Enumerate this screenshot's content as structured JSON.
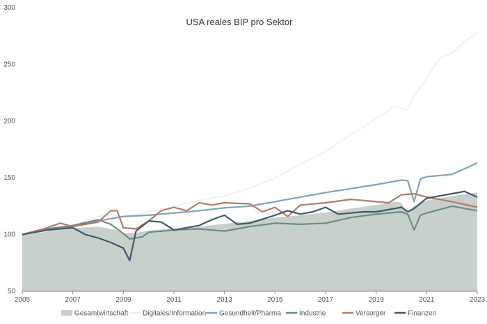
{
  "chart_data": {
    "type": "line",
    "title": "USA reales BIP pro Sektor",
    "xlabel": "",
    "ylabel": "",
    "xlim": [
      2005,
      2023
    ],
    "ylim": [
      50,
      300
    ],
    "x_ticks": [
      "2005",
      "2007",
      "2009",
      "2011",
      "2013",
      "2015",
      "2017",
      "2019",
      "2021",
      "2023"
    ],
    "y_ticks": [
      "50",
      "100",
      "150",
      "200",
      "250",
      "300"
    ],
    "grid": false,
    "legend_position": "bottom",
    "series": [
      {
        "name": "Gesamtwirtschaft",
        "style": "area",
        "color": "#c8d0cc",
        "points": [
          [
            2005,
            100
          ],
          [
            2006,
            103
          ],
          [
            2007,
            105.5
          ],
          [
            2008,
            107
          ],
          [
            2008.75,
            104
          ],
          [
            2009,
            101
          ],
          [
            2009.5,
            101.5
          ],
          [
            2010,
            103.5
          ],
          [
            2011,
            105
          ],
          [
            2012,
            107
          ],
          [
            2013,
            109.5
          ],
          [
            2014,
            112
          ],
          [
            2015,
            115
          ],
          [
            2016,
            117
          ],
          [
            2017,
            119.5
          ],
          [
            2018,
            123
          ],
          [
            2019,
            126
          ],
          [
            2019.75,
            129
          ],
          [
            2020,
            128
          ],
          [
            2020.25,
            118.5
          ],
          [
            2020.5,
            125
          ],
          [
            2021,
            130
          ],
          [
            2022,
            134
          ],
          [
            2023,
            137
          ]
        ]
      },
      {
        "name": "Digitales/Information",
        "color": "#eeeeee",
        "points": [
          [
            2005,
            100
          ],
          [
            2006,
            103
          ],
          [
            2007,
            108
          ],
          [
            2008,
            116
          ],
          [
            2008.5,
            118
          ],
          [
            2009,
            116
          ],
          [
            2009.5,
            117
          ],
          [
            2010,
            120
          ],
          [
            2011,
            125
          ],
          [
            2012,
            130
          ],
          [
            2013,
            134
          ],
          [
            2014,
            141
          ],
          [
            2015,
            150
          ],
          [
            2016,
            162
          ],
          [
            2017,
            173
          ],
          [
            2018,
            188
          ],
          [
            2019,
            202
          ],
          [
            2019.75,
            213
          ],
          [
            2020,
            211
          ],
          [
            2020.25,
            210
          ],
          [
            2020.5,
            222
          ],
          [
            2021,
            238
          ],
          [
            2021.5,
            255
          ],
          [
            2022,
            260
          ],
          [
            2022.5,
            270
          ],
          [
            2023,
            278
          ]
        ]
      },
      {
        "name": "Gesundheit/Pharma",
        "color": "#7fa3b6",
        "points": [
          [
            2005,
            100
          ],
          [
            2006,
            104
          ],
          [
            2007,
            107
          ],
          [
            2008,
            112
          ],
          [
            2009,
            116
          ],
          [
            2010,
            117
          ],
          [
            2011,
            119
          ],
          [
            2012,
            121
          ],
          [
            2013,
            123.5
          ],
          [
            2014,
            125
          ],
          [
            2015,
            129
          ],
          [
            2016,
            133
          ],
          [
            2017,
            137
          ],
          [
            2018,
            140.5
          ],
          [
            2019,
            144
          ],
          [
            2020,
            148
          ],
          [
            2020.25,
            147.5
          ],
          [
            2020.5,
            129
          ],
          [
            2020.75,
            149
          ],
          [
            2021,
            151
          ],
          [
            2022,
            153
          ],
          [
            2023,
            163
          ]
        ]
      },
      {
        "name": "Industrie",
        "color": "#6d8c80",
        "points": [
          [
            2005,
            100
          ],
          [
            2006,
            105
          ],
          [
            2007,
            108
          ],
          [
            2008,
            113
          ],
          [
            2008.5,
            109
          ],
          [
            2009,
            101
          ],
          [
            2009.25,
            96
          ],
          [
            2009.75,
            98
          ],
          [
            2010,
            102
          ],
          [
            2011,
            104
          ],
          [
            2012,
            105
          ],
          [
            2013,
            103
          ],
          [
            2014,
            107
          ],
          [
            2015,
            110
          ],
          [
            2016,
            109
          ],
          [
            2017,
            110
          ],
          [
            2018,
            115
          ],
          [
            2019,
            118
          ],
          [
            2020,
            120
          ],
          [
            2020.25,
            118
          ],
          [
            2020.5,
            104
          ],
          [
            2020.75,
            117
          ],
          [
            2021,
            119
          ],
          [
            2022,
            125
          ],
          [
            2023,
            121
          ]
        ]
      },
      {
        "name": "Versorger",
        "color": "#b57a6b",
        "points": [
          [
            2005,
            100
          ],
          [
            2006,
            106
          ],
          [
            2006.5,
            110
          ],
          [
            2007,
            107
          ],
          [
            2008,
            111
          ],
          [
            2008.5,
            121
          ],
          [
            2008.75,
            121
          ],
          [
            2009,
            106
          ],
          [
            2009.5,
            105
          ],
          [
            2010,
            112
          ],
          [
            2010.5,
            121
          ],
          [
            2011,
            124
          ],
          [
            2011.5,
            121
          ],
          [
            2012,
            128
          ],
          [
            2012.5,
            126
          ],
          [
            2013,
            128
          ],
          [
            2014,
            127
          ],
          [
            2014.5,
            120
          ],
          [
            2015,
            124
          ],
          [
            2015.5,
            116
          ],
          [
            2016,
            126
          ],
          [
            2017,
            128
          ],
          [
            2018,
            131
          ],
          [
            2019,
            129
          ],
          [
            2019.5,
            128
          ],
          [
            2020,
            135
          ],
          [
            2020.5,
            136
          ],
          [
            2021,
            133
          ],
          [
            2021.5,
            131
          ],
          [
            2022,
            129
          ],
          [
            2023,
            124
          ]
        ]
      },
      {
        "name": "Finanzen",
        "color": "#3d5a6c",
        "points": [
          [
            2005,
            100
          ],
          [
            2006,
            104
          ],
          [
            2007,
            106
          ],
          [
            2007.5,
            100
          ],
          [
            2008,
            97
          ],
          [
            2008.5,
            93
          ],
          [
            2009,
            88
          ],
          [
            2009.25,
            77
          ],
          [
            2009.5,
            103
          ],
          [
            2010,
            112
          ],
          [
            2010.5,
            111
          ],
          [
            2011,
            104
          ],
          [
            2011.5,
            106
          ],
          [
            2012,
            108
          ],
          [
            2012.5,
            113
          ],
          [
            2013,
            117
          ],
          [
            2013.5,
            109
          ],
          [
            2014,
            110
          ],
          [
            2015,
            117
          ],
          [
            2015.5,
            121
          ],
          [
            2016,
            118
          ],
          [
            2016.5,
            120
          ],
          [
            2017,
            124
          ],
          [
            2017.5,
            118
          ],
          [
            2018,
            119
          ],
          [
            2018.5,
            120
          ],
          [
            2019,
            120
          ],
          [
            2019.5,
            122
          ],
          [
            2020,
            124
          ],
          [
            2020.25,
            120
          ],
          [
            2020.5,
            123
          ],
          [
            2021,
            132
          ],
          [
            2022,
            136
          ],
          [
            2022.5,
            138
          ],
          [
            2023,
            133
          ]
        ]
      }
    ]
  }
}
